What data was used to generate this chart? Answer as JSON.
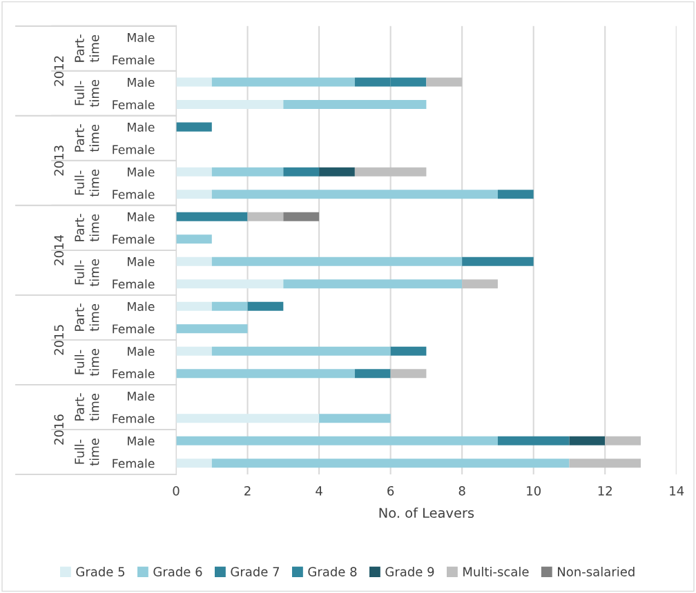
{
  "chart_data": {
    "type": "bar",
    "orientation": "horizontal",
    "stacked": true,
    "xlabel": "No. of Leavers",
    "categories": [
      "Male",
      "Female",
      "Male",
      "Female",
      "Male",
      "Female",
      "Male",
      "Female",
      "Male",
      "Female",
      "Male",
      "Female",
      "Male",
      "Female",
      "Male",
      "Female",
      "Male",
      "Female",
      "Male",
      "Female"
    ],
    "annotations": [
      "2012",
      "Part-time",
      "Full-time",
      "2013",
      "Part-time",
      "Full-time",
      "2014",
      "Part-time",
      "Full-time",
      "2015",
      "Part-time",
      "Full-time",
      "2016",
      "Part-time",
      "Full-time"
    ],
    "series": [
      {
        "name": "Grade 5",
        "color": "#daeef3",
        "values": [
          null,
          null,
          1,
          3,
          null,
          null,
          1,
          1,
          null,
          null,
          1,
          3,
          1,
          null,
          1,
          null,
          null,
          4,
          null,
          1
        ]
      },
      {
        "name": "Grade 6",
        "color": "#92cddc",
        "values": [
          null,
          null,
          4,
          4,
          null,
          null,
          2,
          8,
          null,
          1,
          7,
          5,
          1,
          2,
          5,
          5,
          null,
          2,
          9,
          10
        ]
      },
      {
        "name": "Grade 7",
        "color": "#31849b",
        "values": [
          null,
          null,
          1,
          null,
          1,
          null,
          1,
          1,
          2,
          null,
          2,
          null,
          1,
          null,
          1,
          1,
          null,
          null,
          2,
          null
        ]
      },
      {
        "name": "Grade 8",
        "color": "#31869d",
        "values": [
          null,
          null,
          1,
          null,
          null,
          null,
          null,
          null,
          null,
          null,
          null,
          null,
          null,
          null,
          null,
          null,
          null,
          null,
          null,
          null
        ]
      },
      {
        "name": "Grade 9",
        "color": "#215968",
        "values": [
          null,
          null,
          null,
          null,
          null,
          null,
          1,
          null,
          null,
          null,
          null,
          null,
          null,
          null,
          null,
          null,
          null,
          null,
          1,
          null
        ]
      },
      {
        "name": "Multi-scale",
        "color": "#bfbfbf",
        "values": [
          null,
          null,
          1,
          null,
          null,
          null,
          2,
          null,
          1,
          null,
          null,
          1,
          null,
          null,
          null,
          1,
          null,
          null,
          1,
          2
        ]
      },
      {
        "name": "Non-salaried",
        "color": "#808080",
        "values": [
          null,
          null,
          null,
          null,
          null,
          null,
          null,
          null,
          1,
          null,
          null,
          null,
          null,
          null,
          null,
          null,
          null,
          null,
          null,
          null
        ]
      }
    ],
    "xlim": [
      0,
      14
    ],
    "xticks": [
      0,
      2,
      4,
      6,
      8,
      10,
      12,
      14
    ],
    "grid": "x",
    "legend": "bottom"
  }
}
